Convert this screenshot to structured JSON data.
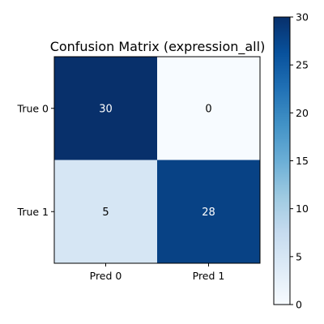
{
  "chart_data": {
    "type": "heatmap",
    "title": "Confusion Matrix (expression_all)",
    "row_labels": [
      "True 0",
      "True 1"
    ],
    "col_labels": [
      "Pred 0",
      "Pred 1"
    ],
    "values": [
      [
        30,
        0
      ],
      [
        5,
        28
      ]
    ],
    "colormap": "Blues",
    "colorbar": {
      "range": [
        0,
        30
      ],
      "ticks": [
        "0",
        "5",
        "10",
        "15",
        "20",
        "25",
        "30"
      ]
    },
    "annotation_colors": {
      "dark_cell": "#ffffff",
      "light_cell": "#000000"
    }
  }
}
